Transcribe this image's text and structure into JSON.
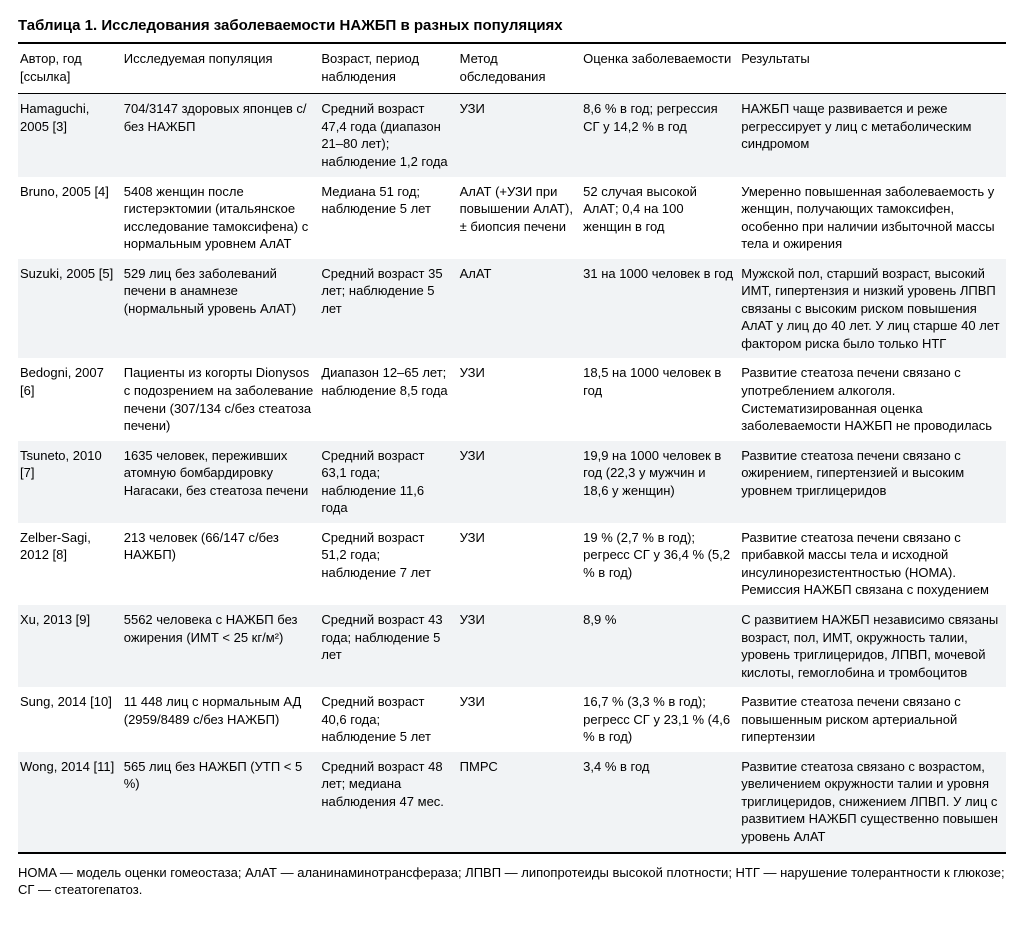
{
  "title": "Таблица 1. Исследования заболеваемости НАЖБП в разных популяциях",
  "columns": [
    "Автор, год [ссылка]",
    "Исследуемая популяция",
    "Возраст, период наблюдения",
    "Метод обследования",
    "Оценка заболеваемости",
    "Результаты"
  ],
  "rows": [
    {
      "author": "Hamaguchi, 2005 [3]",
      "population": "704/3147 здоровых японцев с/без НАЖБП",
      "age": "Средний возраст 47,4 года (диапазон 21–80 лет); наблюдение 1,2 года",
      "method": "УЗИ",
      "incidence": "8,6 % в год; регрессия СГ у 14,2 % в год",
      "results": "НАЖБП чаще развивается и реже регрессирует у лиц с метаболическим синдромом"
    },
    {
      "author": "Bruno, 2005 [4]",
      "population": "5408 женщин после гистерэктомии (итальянское исследование тамоксифена) с нормальным уровнем АлАТ",
      "age": "Медиана 51 год; наблюдение 5 лет",
      "method": "АлАТ (+УЗИ при повышении АлАТ), ± биопсия печени",
      "incidence": "52 случая высокой АлАТ; 0,4 на 100 женщин в год",
      "results": "Умеренно повышенная заболеваемость у женщин, получающих тамоксифен, особенно при наличии избыточной массы тела и ожирения"
    },
    {
      "author": "Suzuki, 2005 [5]",
      "population": "529 лиц без заболеваний печени в анамнезе (нормальный уровень АлАТ)",
      "age": "Средний возраст 35 лет; наблюдение 5 лет",
      "method": "АлАТ",
      "incidence": "31 на 1000 человек в год",
      "results": "Мужской пол, старший возраст, высокий ИМТ, гипертензия и низкий уровень ЛПВП связаны с высоким риском повышения АлАТ у лиц до 40 лет. У лиц старше 40 лет фактором риска было только НТГ"
    },
    {
      "author": "Bedogni, 2007 [6]",
      "population": "Пациенты из когорты Dionysos с подозрением на заболевание печени (307/134 с/без стеатоза печени)",
      "age": "Диапазон 12–65 лет; наблюдение 8,5 года",
      "method": "УЗИ",
      "incidence": "18,5 на 1000 человек в год",
      "results": "Развитие стеатоза печени связано с употреблением алкоголя. Систематизированная оценка заболеваемости НАЖБП не проводилась"
    },
    {
      "author": "Tsuneto, 2010 [7]",
      "population": "1635 человек, переживших атомную бомбардировку Нагасаки, без стеатоза печени",
      "age": "Средний возраст 63,1 года; наблюдение 11,6 года",
      "method": "УЗИ",
      "incidence": "19,9 на 1000 человек в год (22,3 у мужчин и 18,6 у женщин)",
      "results": "Развитие стеатоза печени связано с ожирением, гипертензией и высоким уровнем триглицеридов"
    },
    {
      "author": "Zelber-Sagi, 2012 [8]",
      "population": "213 человек (66/147 с/без НАЖБП)",
      "age": "Средний возраст 51,2 года; наблюдение 7 лет",
      "method": "УЗИ",
      "incidence": "19 % (2,7 % в год); регресс СГ у 36,4 % (5,2 % в год)",
      "results": "Развитие стеатоза печени связано с прибавкой массы тела и исходной инсулинорезистентностью (HOMA). Ремиссия НАЖБП связана с похудением"
    },
    {
      "author": "Xu, 2013 [9]",
      "population": "5562 человека с НАЖБП без ожирения (ИМТ < 25 кг/м²)",
      "age": "Средний возраст 43 года; наблюдение 5 лет",
      "method": "УЗИ",
      "incidence": "8,9 %",
      "results": "С развитием НАЖБП независимо связаны возраст, пол, ИМТ, окружность талии, уровень триглицеридов, ЛПВП, мочевой кислоты, гемоглобина и тромбоцитов"
    },
    {
      "author": "Sung, 2014 [10]",
      "population": "11 448 лиц с нормальным АД (2959/8489 с/без НАЖБП)",
      "age": "Средний возраст 40,6 года; наблюдение 5 лет",
      "method": "УЗИ",
      "incidence": "16,7 % (3,3 % в год); регресс СГ у 23,1 % (4,6 % в год)",
      "results": "Развитие стеатоза печени связано с повышенным риском артериальной гипертензии"
    },
    {
      "author": "Wong, 2014 [11]",
      "population": "565 лиц без НАЖБП (УТП < 5 %)",
      "age": "Средний возраст 48 лет; медиана наблюдения 47 мес.",
      "method": "ПМРС",
      "incidence": "3,4 % в год",
      "results": "Развитие стеатоза связано с возрастом, увеличением окружности талии и уровня триглицеридов, снижением ЛПВП. У лиц с развитием НАЖБП существенно повышен уровень АлАТ"
    }
  ],
  "footnote": "HOMA — модель оценки гомеостаза; АлАТ — аланинаминотрансфераза; ЛПВП — липопротеиды высокой плотности; НТГ — нарушение толерантности к глюкозе; СГ — стеатогепатоз."
}
